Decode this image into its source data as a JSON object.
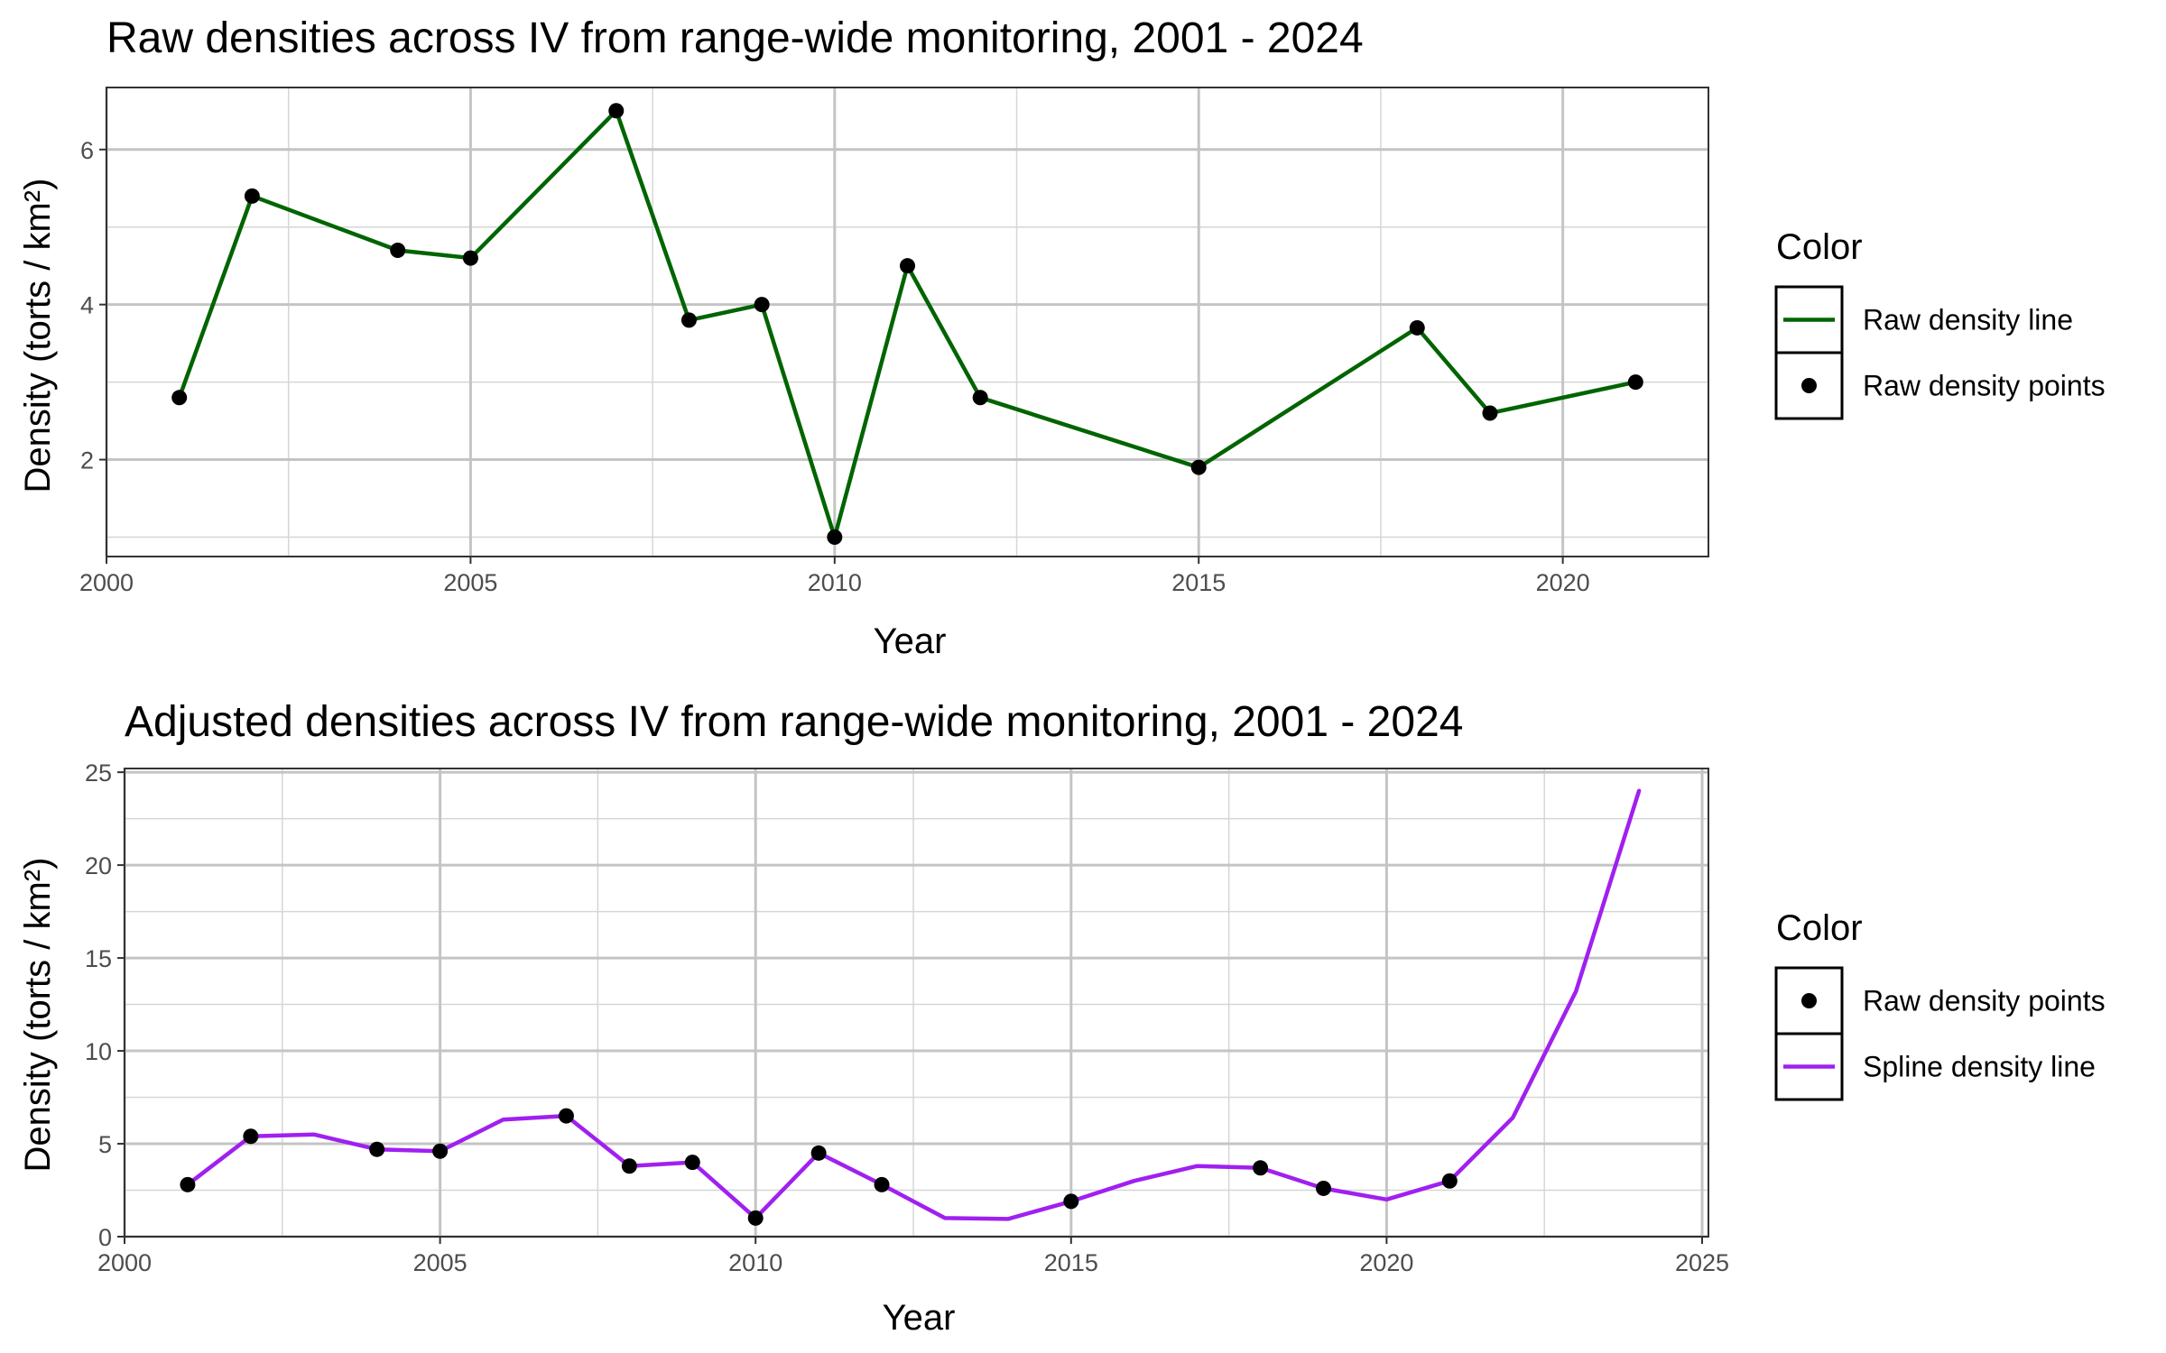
{
  "chart_data": [
    {
      "type": "line",
      "title": "Raw densities across IV from range-wide monitoring, 2001 - 2024",
      "xlabel": "Year",
      "ylabel": "Density (torts / km²)",
      "xlim": [
        2000,
        2022
      ],
      "ylim": [
        0.75,
        6.8
      ],
      "xticks": [
        2000,
        2005,
        2010,
        2015,
        2020
      ],
      "yticks": [
        2,
        4,
        6
      ],
      "grid": true,
      "legend_position": "right",
      "legend_title": "Color",
      "legend": [
        {
          "label": "Raw density line",
          "kind": "line",
          "color": "#006400"
        },
        {
          "label": "Raw density points",
          "kind": "point",
          "color": "#000000"
        }
      ],
      "series": [
        {
          "name": "Raw density line",
          "kind": "line",
          "color": "#006400",
          "x": [
            2001,
            2002,
            2004,
            2005,
            2007,
            2008,
            2009,
            2010,
            2011,
            2012,
            2015,
            2018,
            2019,
            2021
          ],
          "y": [
            2.8,
            5.4,
            4.7,
            4.6,
            6.5,
            3.8,
            4.0,
            1.0,
            4.5,
            2.8,
            1.9,
            3.7,
            2.6,
            3.0
          ]
        },
        {
          "name": "Raw density points",
          "kind": "point",
          "color": "#000000",
          "x": [
            2001,
            2002,
            2004,
            2005,
            2007,
            2008,
            2009,
            2010,
            2011,
            2012,
            2015,
            2018,
            2019,
            2021
          ],
          "y": [
            2.8,
            5.4,
            4.7,
            4.6,
            6.5,
            3.8,
            4.0,
            1.0,
            4.5,
            2.8,
            1.9,
            3.7,
            2.6,
            3.0
          ]
        }
      ]
    },
    {
      "type": "line",
      "title": "Adjusted densities across IV from range-wide monitoring, 2001 - 2024",
      "xlabel": "Year",
      "ylabel": "Density (torts / km²)",
      "xlim": [
        2000,
        2025.1
      ],
      "ylim": [
        0,
        25.2
      ],
      "xticks": [
        2000,
        2005,
        2010,
        2015,
        2020,
        2025
      ],
      "yticks": [
        0,
        5,
        10,
        15,
        20,
        25
      ],
      "grid": true,
      "legend_position": "right",
      "legend_title": "Color",
      "legend": [
        {
          "label": "Raw density points",
          "kind": "point",
          "color": "#000000"
        },
        {
          "label": "Spline density line",
          "kind": "line",
          "color": "#A020F0"
        }
      ],
      "series": [
        {
          "name": "Spline density line",
          "kind": "line",
          "color": "#A020F0",
          "x": [
            2001,
            2002,
            2003,
            2004,
            2005,
            2006,
            2007,
            2008,
            2009,
            2010,
            2011,
            2012,
            2013,
            2014,
            2015,
            2016,
            2017,
            2018,
            2019,
            2020,
            2021,
            2022,
            2023,
            2024
          ],
          "y": [
            2.8,
            5.4,
            5.5,
            4.7,
            4.6,
            6.3,
            6.5,
            3.8,
            4.0,
            1.0,
            4.5,
            2.8,
            1.0,
            0.95,
            1.9,
            3.0,
            3.8,
            3.7,
            2.6,
            2.0,
            3.0,
            6.4,
            13.2,
            24.0
          ]
        },
        {
          "name": "Raw density points",
          "kind": "point",
          "color": "#000000",
          "x": [
            2001,
            2002,
            2004,
            2005,
            2007,
            2008,
            2009,
            2010,
            2011,
            2012,
            2015,
            2018,
            2019,
            2021
          ],
          "y": [
            2.8,
            5.4,
            4.7,
            4.6,
            6.5,
            3.8,
            4.0,
            1.0,
            4.5,
            2.8,
            1.9,
            3.7,
            2.6,
            3.0
          ]
        }
      ]
    }
  ]
}
